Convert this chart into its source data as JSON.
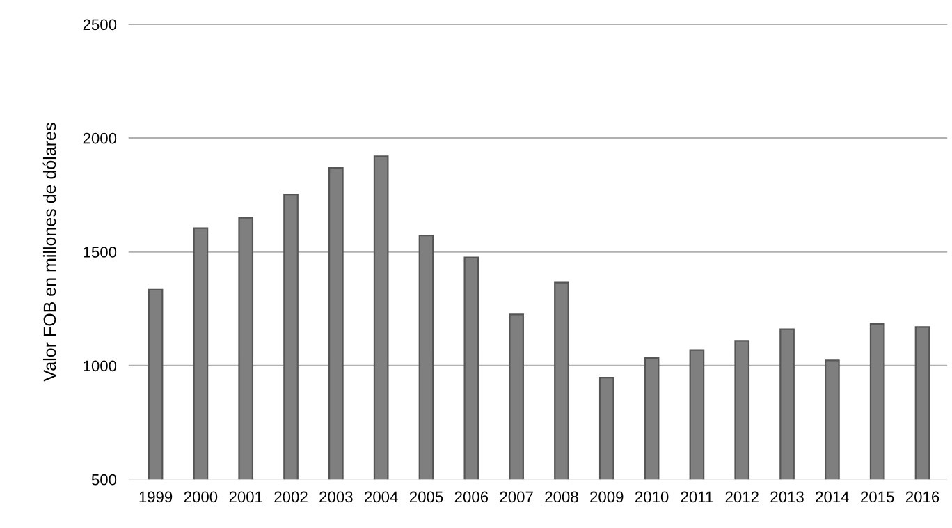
{
  "chart_data": {
    "type": "bar",
    "ylabel": "Valor FOB en millones de dólares",
    "categories": [
      "1999",
      "2000",
      "2001",
      "2002",
      "2003",
      "2004",
      "2005",
      "2006",
      "2007",
      "2008",
      "2009",
      "2010",
      "2011",
      "2012",
      "2013",
      "2014",
      "2015",
      "2016"
    ],
    "values": [
      1334,
      1604,
      1650,
      1752,
      1869,
      1920,
      1572,
      1475,
      1225,
      1365,
      947,
      1033,
      1068,
      1109,
      1160,
      1023,
      1184,
      1170
    ],
    "color": "#7f7f7f",
    "ylim": [
      500,
      2500
    ],
    "yticks": [
      500,
      1000,
      1500,
      2000,
      2500
    ],
    "grid": "y",
    "legend": false
  }
}
